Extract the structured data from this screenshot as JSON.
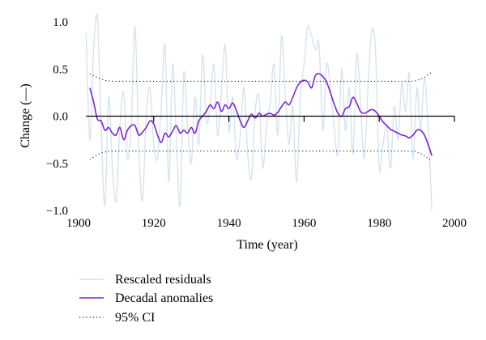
{
  "chart_data": {
    "type": "line",
    "xlabel": "Time (year)",
    "ylabel": "Change (—)",
    "xlim": [
      1900,
      2000
    ],
    "ylim": [
      -1.0,
      1.0
    ],
    "x_ticks": [
      1900,
      1920,
      1940,
      1960,
      1980,
      2000
    ],
    "y_ticks": [
      1.0,
      0.5,
      0.0,
      -0.5,
      -1.0
    ],
    "x_tick_labels": [
      "1900",
      "1920",
      "1940",
      "1960",
      "1980",
      "2000"
    ],
    "y_tick_labels": [
      "1.0",
      "0.5",
      "0.0",
      "−0.5",
      "−1.0"
    ],
    "grid": false,
    "legend_position": "bottom-left",
    "colors": {
      "residuals": "#d6e4ef",
      "anomalies": "#7a25d8",
      "ci": "#222222",
      "axis": "#000000"
    },
    "series": [
      {
        "name": "Rescaled residuals",
        "style": "solid-thin",
        "x": [
          1902,
          1903,
          1904,
          1905,
          1906,
          1907,
          1908,
          1909,
          1910,
          1911,
          1912,
          1913,
          1914,
          1915,
          1916,
          1917,
          1918,
          1919,
          1920,
          1921,
          1922,
          1923,
          1924,
          1925,
          1926,
          1927,
          1928,
          1929,
          1930,
          1931,
          1932,
          1933,
          1934,
          1935,
          1936,
          1937,
          1938,
          1939,
          1940,
          1941,
          1942,
          1943,
          1944,
          1945,
          1946,
          1947,
          1948,
          1949,
          1950,
          1951,
          1952,
          1953,
          1954,
          1955,
          1956,
          1957,
          1958,
          1959,
          1960,
          1961,
          1962,
          1963,
          1964,
          1965,
          1966,
          1967,
          1968,
          1969,
          1970,
          1971,
          1972,
          1973,
          1974,
          1975,
          1976,
          1977,
          1978,
          1979,
          1980,
          1981,
          1982,
          1983,
          1984,
          1985,
          1986,
          1987,
          1988,
          1989,
          1990,
          1991,
          1992,
          1993,
          1994
        ],
        "values": [
          0.88,
          -0.25,
          0.7,
          1.05,
          -0.1,
          -0.95,
          0.2,
          -0.55,
          -0.9,
          -0.1,
          0.25,
          -0.45,
          -0.1,
          0.95,
          -0.3,
          -0.9,
          0.0,
          0.3,
          -0.3,
          -0.45,
          0.1,
          0.75,
          -0.7,
          0.55,
          -0.2,
          -0.95,
          0.45,
          -0.1,
          -0.5,
          0.2,
          -0.3,
          0.65,
          -0.05,
          0.1,
          0.55,
          -0.2,
          0.25,
          0.75,
          -0.15,
          0.2,
          -0.45,
          -0.2,
          0.3,
          -0.4,
          -0.65,
          0.05,
          0.2,
          -0.55,
          -0.1,
          0.15,
          0.55,
          -0.2,
          0.85,
          0.2,
          -0.3,
          0.1,
          -0.7,
          0.2,
          0.55,
          0.95,
          0.85,
          0.7,
          0.75,
          -0.15,
          0.55,
          0.3,
          -0.1,
          -0.4,
          0.5,
          -0.15,
          0.3,
          -0.4,
          0.65,
          0.15,
          -0.45,
          0.3,
          0.9,
          0.7,
          -0.55,
          -0.3,
          -0.1,
          -0.55,
          0.1,
          -0.25,
          0.35,
          0.05,
          0.45,
          -0.45,
          0.3,
          -0.15,
          0.4,
          -0.1,
          -1.0
        ]
      },
      {
        "name": "Decadal anomalies",
        "style": "solid-thick",
        "x": [
          1903,
          1904,
          1905,
          1906,
          1907,
          1908,
          1909,
          1910,
          1911,
          1912,
          1913,
          1914,
          1915,
          1916,
          1917,
          1918,
          1919,
          1920,
          1921,
          1922,
          1923,
          1924,
          1925,
          1926,
          1927,
          1928,
          1929,
          1930,
          1931,
          1932,
          1933,
          1934,
          1935,
          1936,
          1937,
          1938,
          1939,
          1940,
          1941,
          1942,
          1943,
          1944,
          1945,
          1946,
          1947,
          1948,
          1949,
          1950,
          1951,
          1952,
          1953,
          1954,
          1955,
          1956,
          1957,
          1958,
          1959,
          1960,
          1961,
          1962,
          1963,
          1964,
          1965,
          1966,
          1967,
          1968,
          1969,
          1970,
          1971,
          1972,
          1973,
          1974,
          1975,
          1976,
          1977,
          1978,
          1979,
          1980,
          1981,
          1982,
          1983,
          1984,
          1985,
          1986,
          1987,
          1988,
          1989,
          1990,
          1991,
          1992,
          1993,
          1994
        ],
        "values": [
          0.3,
          0.15,
          -0.03,
          -0.05,
          -0.15,
          -0.12,
          -0.18,
          -0.2,
          -0.12,
          -0.25,
          -0.15,
          -0.1,
          -0.1,
          -0.2,
          -0.17,
          -0.12,
          -0.05,
          -0.08,
          -0.2,
          -0.28,
          -0.18,
          -0.22,
          -0.16,
          -0.1,
          -0.18,
          -0.15,
          -0.18,
          -0.12,
          -0.18,
          -0.05,
          0.0,
          0.05,
          0.12,
          0.08,
          0.15,
          0.05,
          0.12,
          0.08,
          0.14,
          0.06,
          -0.05,
          -0.12,
          -0.05,
          0.02,
          -0.02,
          0.03,
          0.0,
          0.02,
          0.03,
          0.01,
          0.04,
          0.1,
          0.15,
          0.12,
          0.2,
          0.3,
          0.36,
          0.38,
          0.36,
          0.3,
          0.43,
          0.45,
          0.42,
          0.36,
          0.25,
          0.13,
          0.03,
          0.0,
          0.08,
          0.1,
          0.2,
          0.14,
          0.05,
          0.03,
          0.05,
          0.07,
          0.05,
          0.0,
          -0.06,
          -0.1,
          -0.14,
          -0.16,
          -0.18,
          -0.2,
          -0.21,
          -0.23,
          -0.2,
          -0.15,
          -0.15,
          -0.2,
          -0.3,
          -0.42
        ]
      },
      {
        "name": "95% CI",
        "style": "dotted",
        "upper_x": [
          1903,
          1905,
          1907,
          1910,
          1920,
          1930,
          1940,
          1950,
          1960,
          1970,
          1980,
          1988,
          1990,
          1992,
          1994
        ],
        "upper": [
          0.45,
          0.41,
          0.38,
          0.37,
          0.37,
          0.37,
          0.37,
          0.37,
          0.37,
          0.37,
          0.37,
          0.37,
          0.38,
          0.41,
          0.47
        ],
        "lower_x": [
          1903,
          1905,
          1907,
          1910,
          1920,
          1930,
          1940,
          1950,
          1960,
          1970,
          1980,
          1988,
          1990,
          1992,
          1994
        ],
        "lower": [
          -0.46,
          -0.41,
          -0.38,
          -0.37,
          -0.37,
          -0.37,
          -0.37,
          -0.37,
          -0.37,
          -0.37,
          -0.37,
          -0.37,
          -0.38,
          -0.42,
          -0.48
        ]
      }
    ]
  },
  "legend": {
    "items": [
      {
        "label": "Rescaled residuals",
        "color": "#d6e4ef",
        "style": "solid-thin"
      },
      {
        "label": "Decadal anomalies",
        "color": "#7a25d8",
        "style": "solid-thick"
      },
      {
        "label": "95% CI",
        "color": "#222222",
        "style": "dotted"
      }
    ]
  }
}
